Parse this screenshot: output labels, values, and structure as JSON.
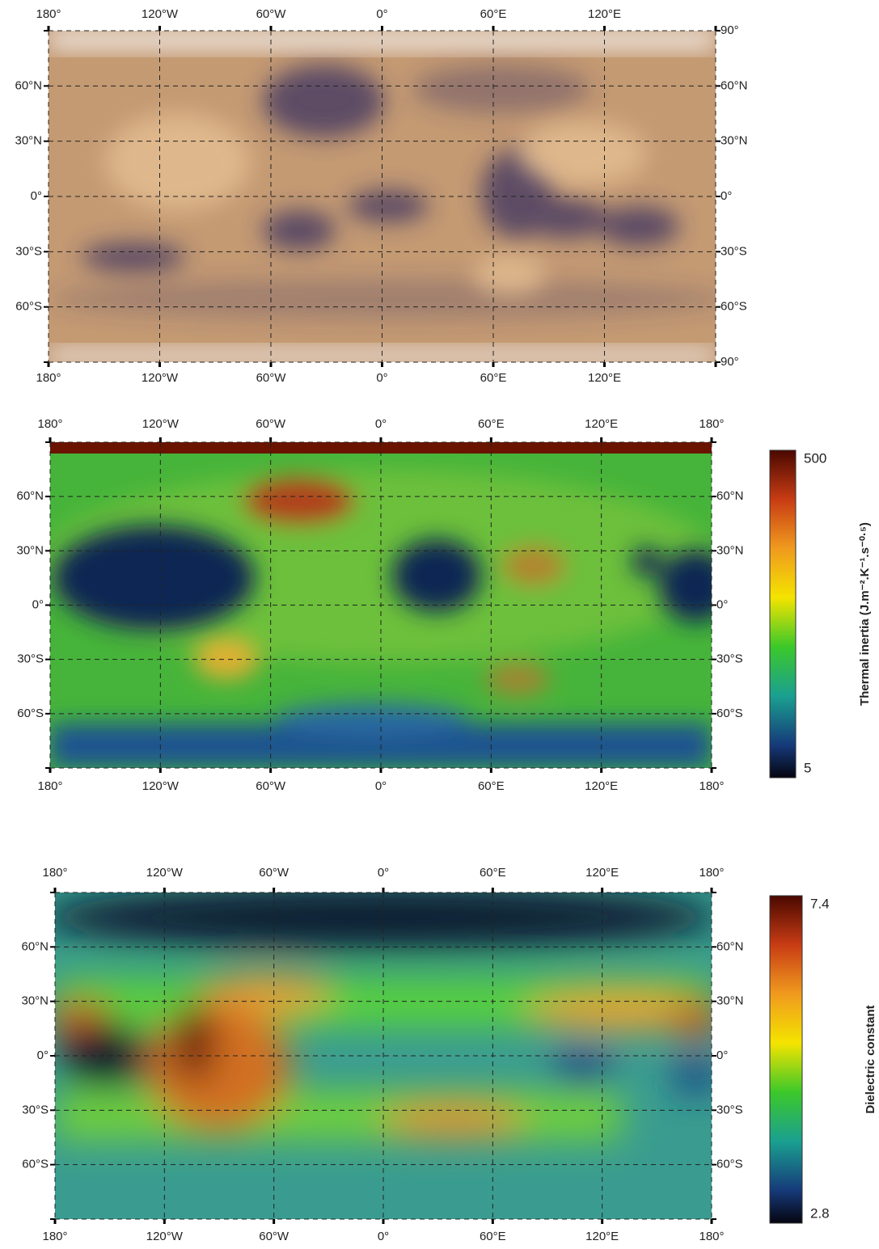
{
  "panels": [
    {
      "top_labels": [
        "180°",
        "120°W",
        "60°W",
        "0°",
        "60°E",
        "120°E"
      ],
      "bottom_labels": [
        "180°",
        "120°W",
        "60°W",
        "0°",
        "60°E",
        "120°E"
      ],
      "left_labels": [
        "60°N",
        "30°N",
        "0°",
        "30°S",
        "60°S"
      ],
      "right_labels": [
        "90°",
        "60°N",
        "30°N",
        "0°",
        "30°S",
        "60°S",
        "90°"
      ]
    },
    {
      "top_labels": [
        "180°",
        "120°W",
        "60°W",
        "0°",
        "60°E",
        "120°E",
        "180°"
      ],
      "bottom_labels": [
        "180°",
        "120°W",
        "60°W",
        "0°",
        "60°E",
        "120°E",
        "180°"
      ],
      "left_labels": [
        "60°N",
        "30°N",
        "0°",
        "30°S",
        "60°S"
      ],
      "right_labels": [
        "60°N",
        "30°N",
        "0°",
        "30°S",
        "60°S"
      ],
      "colorbar": {
        "title": "Thermal inertia (J.m⁻².K⁻¹.s⁻⁰·⁵)",
        "max": 500,
        "min": 5
      }
    },
    {
      "top_labels": [
        "180°",
        "120°W",
        "60°W",
        "0°",
        "60°E",
        "120°E",
        "180°"
      ],
      "bottom_labels": [
        "180°",
        "120°W",
        "60°W",
        "0°",
        "60°E",
        "120°E",
        "180°"
      ],
      "left_labels": [
        "60°N",
        "30°N",
        "0°",
        "30°S",
        "60°S"
      ],
      "right_labels": [
        "60°N",
        "30°N",
        "0°",
        "30°S",
        "60°S"
      ],
      "colorbar": {
        "title": "Dielectric constant",
        "max": 7.4,
        "min": 2.8
      }
    }
  ]
}
